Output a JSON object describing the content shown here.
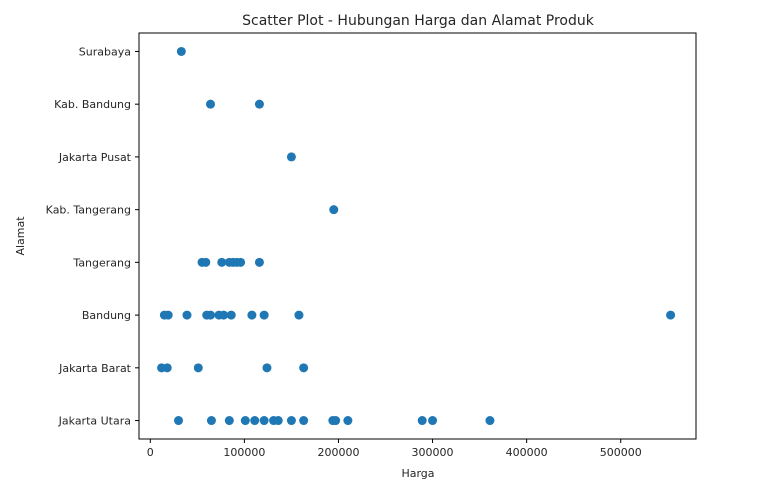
{
  "chart_data": {
    "type": "scatter",
    "title": "Scatter Plot - Hubungan Harga dan Alamat Produk",
    "xlabel": "Harga",
    "ylabel": "Alamat",
    "xlim": [
      -12000,
      580000
    ],
    "x_ticks": [
      0,
      100000,
      200000,
      300000,
      400000,
      500000
    ],
    "x_tick_labels": [
      "0",
      "100000",
      "200000",
      "300000",
      "400000",
      "500000"
    ],
    "categories": [
      "Jakarta Utara",
      "Jakarta Barat",
      "Bandung",
      "Tangerang",
      "Kab. Tangerang",
      "Jakarta Pusat",
      "Kab. Bandung",
      "Surabaya"
    ],
    "grid": false,
    "marker_color": "#1f77b4",
    "points": [
      {
        "x": 33000,
        "y": "Surabaya"
      },
      {
        "x": 64000,
        "y": "Kab. Bandung"
      },
      {
        "x": 116000,
        "y": "Kab. Bandung"
      },
      {
        "x": 150000,
        "y": "Jakarta Pusat"
      },
      {
        "x": 195000,
        "y": "Kab. Tangerang"
      },
      {
        "x": 55000,
        "y": "Tangerang"
      },
      {
        "x": 59000,
        "y": "Tangerang"
      },
      {
        "x": 76000,
        "y": "Tangerang"
      },
      {
        "x": 84000,
        "y": "Tangerang"
      },
      {
        "x": 88000,
        "y": "Tangerang"
      },
      {
        "x": 92000,
        "y": "Tangerang"
      },
      {
        "x": 96000,
        "y": "Tangerang"
      },
      {
        "x": 116000,
        "y": "Tangerang"
      },
      {
        "x": 15000,
        "y": "Bandung"
      },
      {
        "x": 19000,
        "y": "Bandung"
      },
      {
        "x": 39000,
        "y": "Bandung"
      },
      {
        "x": 60000,
        "y": "Bandung"
      },
      {
        "x": 64000,
        "y": "Bandung"
      },
      {
        "x": 73000,
        "y": "Bandung"
      },
      {
        "x": 78000,
        "y": "Bandung"
      },
      {
        "x": 86000,
        "y": "Bandung"
      },
      {
        "x": 108000,
        "y": "Bandung"
      },
      {
        "x": 121000,
        "y": "Bandung"
      },
      {
        "x": 158000,
        "y": "Bandung"
      },
      {
        "x": 553000,
        "y": "Bandung"
      },
      {
        "x": 12000,
        "y": "Jakarta Barat"
      },
      {
        "x": 18000,
        "y": "Jakarta Barat"
      },
      {
        "x": 51000,
        "y": "Jakarta Barat"
      },
      {
        "x": 124000,
        "y": "Jakarta Barat"
      },
      {
        "x": 163000,
        "y": "Jakarta Barat"
      },
      {
        "x": 30000,
        "y": "Jakarta Utara"
      },
      {
        "x": 65000,
        "y": "Jakarta Utara"
      },
      {
        "x": 84000,
        "y": "Jakarta Utara"
      },
      {
        "x": 101000,
        "y": "Jakarta Utara"
      },
      {
        "x": 111000,
        "y": "Jakarta Utara"
      },
      {
        "x": 121000,
        "y": "Jakarta Utara"
      },
      {
        "x": 131000,
        "y": "Jakarta Utara"
      },
      {
        "x": 136000,
        "y": "Jakarta Utara"
      },
      {
        "x": 150000,
        "y": "Jakarta Utara"
      },
      {
        "x": 163000,
        "y": "Jakarta Utara"
      },
      {
        "x": 194000,
        "y": "Jakarta Utara"
      },
      {
        "x": 197000,
        "y": "Jakarta Utara"
      },
      {
        "x": 210000,
        "y": "Jakarta Utara"
      },
      {
        "x": 289000,
        "y": "Jakarta Utara"
      },
      {
        "x": 300000,
        "y": "Jakarta Utara"
      },
      {
        "x": 361000,
        "y": "Jakarta Utara"
      }
    ]
  }
}
